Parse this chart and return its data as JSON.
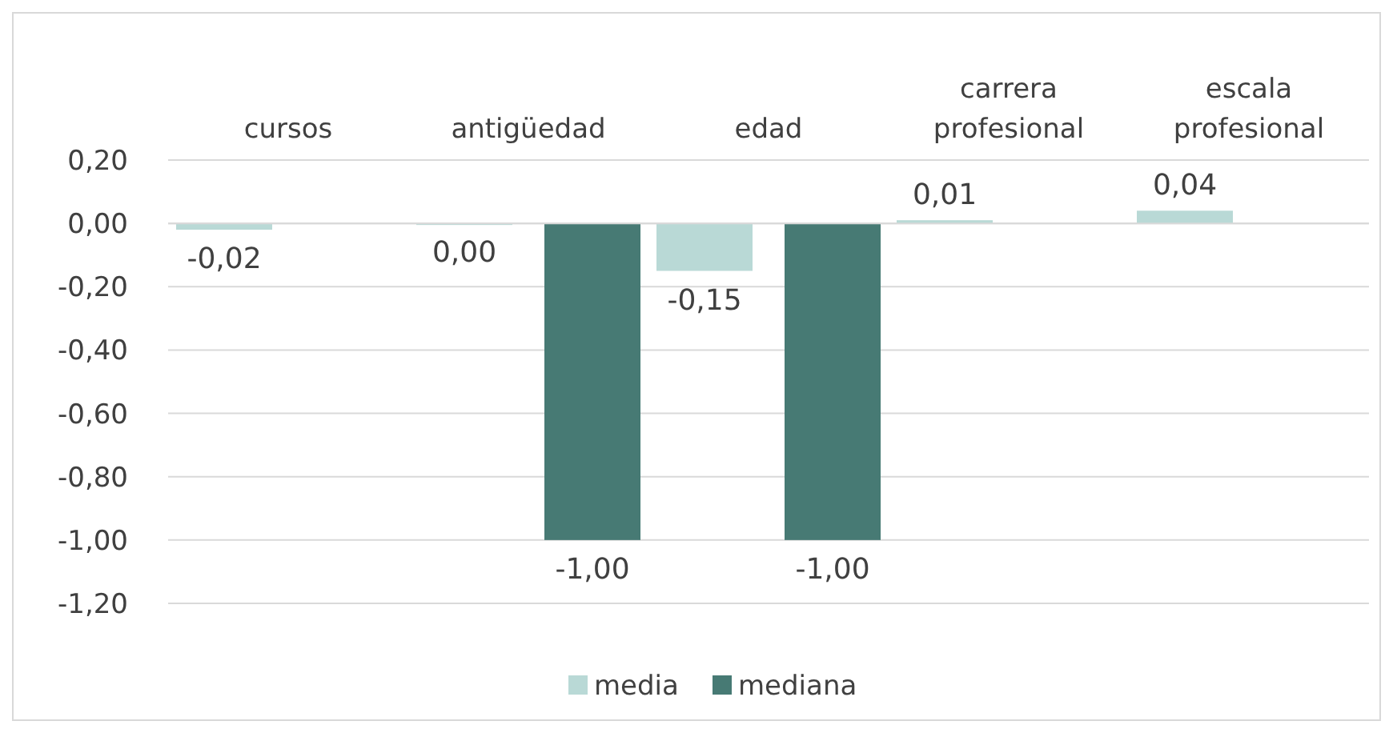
{
  "chart_data": {
    "type": "bar",
    "categories": [
      "cursos",
      "antigüedad",
      "edad",
      "carrera profesional",
      "escala profesional"
    ],
    "series": [
      {
        "name": "media",
        "color": "#b9d9d6",
        "values": [
          -0.02,
          0,
          -0.15,
          0.01,
          0.04
        ],
        "value_labels": [
          "-0,02",
          "0,00",
          "-0,15",
          "0,01",
          "0,04"
        ]
      },
      {
        "name": "mediana",
        "color": "#477a74",
        "values": [
          null,
          -1,
          -1,
          null,
          null
        ],
        "value_labels": [
          null,
          "-1,00",
          "-1,00",
          null,
          null
        ]
      }
    ],
    "ylim": [
      -1.2,
      0.2
    ],
    "yticks": [
      {
        "value": -1.2,
        "label": "-1,20"
      },
      {
        "value": -1,
        "label": "-1,00"
      },
      {
        "value": -0.8,
        "label": "-0,80"
      },
      {
        "value": -0.6,
        "label": "-0,60"
      },
      {
        "value": -0.4,
        "label": "-0,40"
      },
      {
        "value": -0.2,
        "label": "-0,20"
      },
      {
        "value": 0,
        "label": "0,00"
      },
      {
        "value": 0.2,
        "label": "0,20"
      }
    ],
    "grid": "y",
    "legend": "bottom"
  }
}
